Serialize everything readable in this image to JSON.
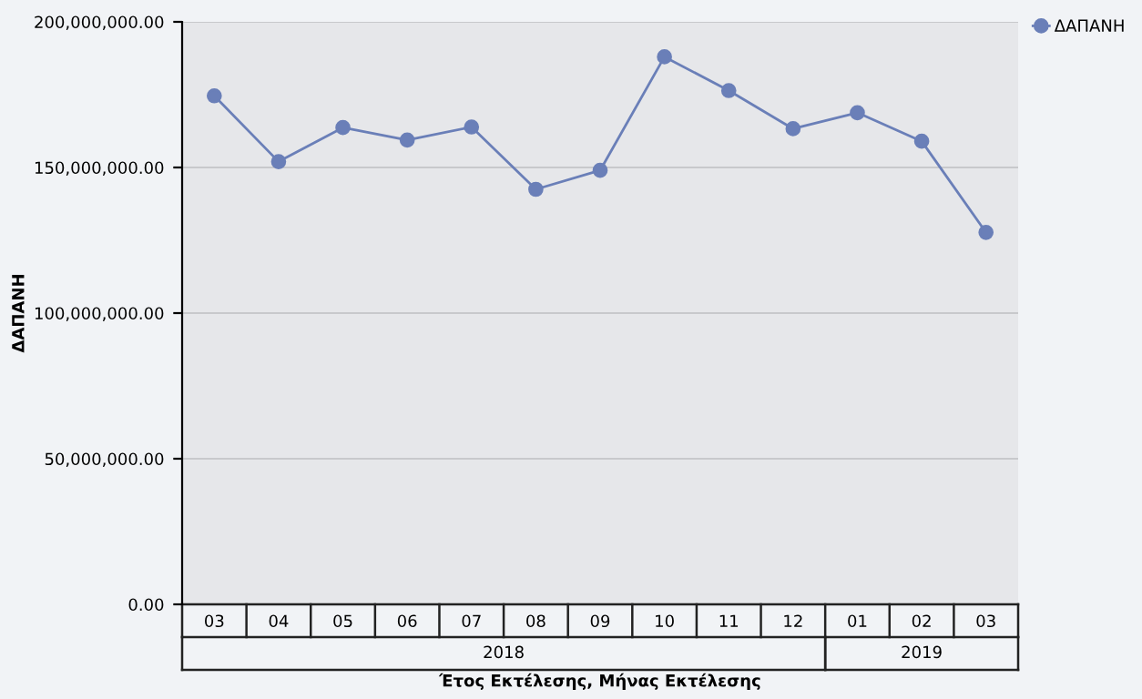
{
  "chart_data": {
    "type": "line",
    "xlabel": "Έτος Εκτέλεσης, Μήνας Εκτέλεσης",
    "ylabel": "ΔΑΠΑΝΗ",
    "categories": [
      "03",
      "04",
      "05",
      "06",
      "07",
      "08",
      "09",
      "10",
      "11",
      "12",
      "01",
      "02",
      "03"
    ],
    "series": [
      {
        "name": "ΔΑΠΑΝΗ",
        "color": "#6a7fb8",
        "values": [
          174600000,
          152000000,
          163700000,
          159400000,
          163900000,
          142500000,
          149000000,
          188000000,
          176400000,
          163300000,
          168800000,
          159000000,
          127700000
        ]
      }
    ],
    "annotations": [
      "2018",
      "2019"
    ],
    "ylim": [
      0,
      200000000
    ],
    "yticks": [
      {
        "value": 0,
        "label": "0.00"
      },
      {
        "value": 50000000,
        "label": "50,000,000.00"
      },
      {
        "value": 100000000,
        "label": "100,000,000.00"
      },
      {
        "value": 150000000,
        "label": "150,000,000.00"
      },
      {
        "value": 200000000,
        "label": "200,000,000.00"
      }
    ],
    "grid": "y",
    "legend": "top right",
    "marker": "circle",
    "line_style": "solid"
  }
}
